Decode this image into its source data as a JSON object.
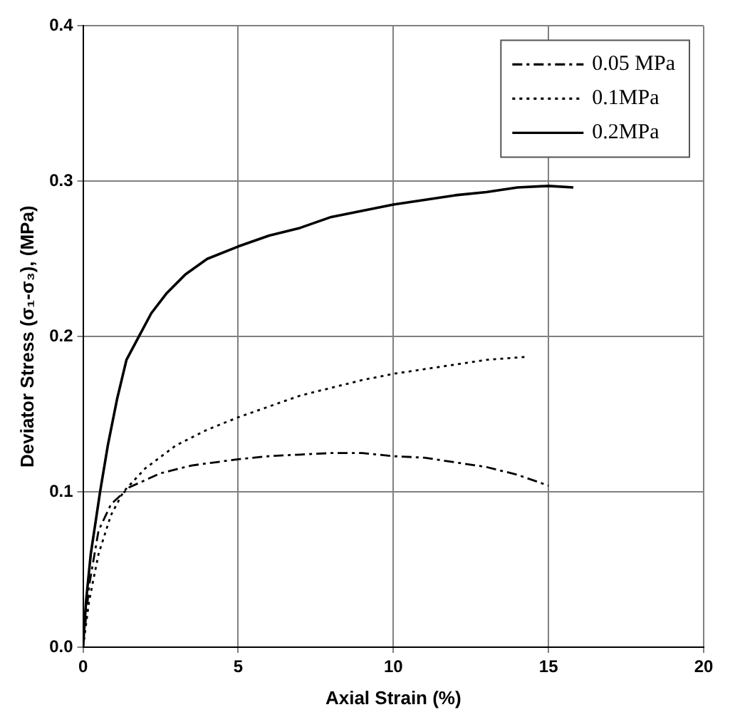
{
  "chart_data": {
    "type": "line",
    "xlabel": "Axial Strain (%)",
    "ylabel": "Deviator Stress (σ₁-σ₃), (MPa)",
    "xlim": [
      0,
      20
    ],
    "xticks": [
      0,
      5,
      10,
      15,
      20
    ],
    "ylim": [
      0,
      0.4
    ],
    "yticks": [
      {
        "value": 0,
        "label": "0.0"
      },
      0.1,
      0.2,
      0.3,
      0.4
    ],
    "grid": true,
    "legend": "top right",
    "marker": "none",
    "series": [
      {
        "name": "0.05 MPa",
        "color": "#000000",
        "line_style": "dashed",
        "x": [
          0,
          0.2,
          0.5,
          0.9,
          1.5,
          2.5,
          3.5,
          5,
          6,
          7,
          8,
          9,
          10,
          11,
          12,
          13,
          14,
          15
        ],
        "values": [
          0,
          0.04,
          0.075,
          0.092,
          0.103,
          0.112,
          0.117,
          0.121,
          0.123,
          0.124,
          0.125,
          0.125,
          0.123,
          0.122,
          0.119,
          0.116,
          0.111,
          0.104
        ]
      },
      {
        "name": "0.1MPa",
        "color": "#000000",
        "line_style": "dotted",
        "x": [
          0,
          0.2,
          0.5,
          0.9,
          1.3,
          2,
          3,
          4,
          5,
          6,
          7,
          8,
          9,
          10,
          11,
          12,
          13,
          14.3
        ],
        "values": [
          0,
          0.03,
          0.06,
          0.085,
          0.1,
          0.115,
          0.13,
          0.14,
          0.148,
          0.155,
          0.162,
          0.167,
          0.172,
          0.176,
          0.179,
          0.182,
          0.185,
          0.187
        ]
      },
      {
        "name": "0.2MPa",
        "color": "#000000",
        "line_style": "solid",
        "x": [
          0,
          0.1,
          0.25,
          0.55,
          0.8,
          1.1,
          1.4,
          1.8,
          2.2,
          2.7,
          3.3,
          4,
          5,
          6,
          7,
          8,
          9,
          10,
          11,
          12,
          13,
          14,
          15,
          15.8
        ],
        "values": [
          0,
          0.03,
          0.06,
          0.1,
          0.13,
          0.16,
          0.185,
          0.2,
          0.215,
          0.228,
          0.24,
          0.25,
          0.258,
          0.265,
          0.27,
          0.277,
          0.281,
          0.285,
          0.288,
          0.291,
          0.293,
          0.296,
          0.297,
          0.296
        ]
      }
    ]
  }
}
